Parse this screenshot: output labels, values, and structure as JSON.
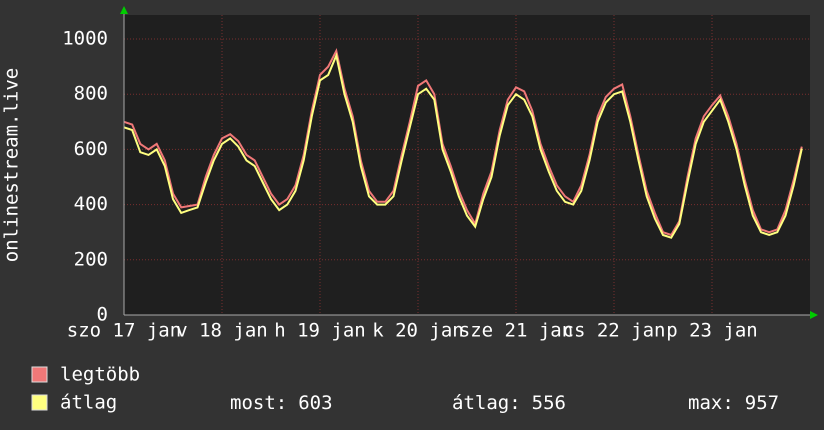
{
  "chart_data": {
    "type": "line",
    "ylabel": "onlinestream.live",
    "x": [
      0,
      2,
      4,
      6,
      8,
      10,
      12,
      14,
      16,
      18,
      20,
      22,
      24,
      26,
      28,
      30,
      32,
      34,
      36,
      38,
      40,
      42,
      44,
      46,
      48,
      50,
      52,
      54,
      56,
      58,
      60,
      62,
      64,
      66,
      68,
      70,
      72,
      74,
      76,
      78,
      80,
      82,
      84,
      86,
      88,
      90,
      92,
      94,
      96,
      98,
      100,
      102,
      104,
      106,
      108,
      110,
      112,
      114,
      116,
      118,
      120,
      122,
      124,
      126,
      128,
      130,
      132,
      134,
      136,
      138,
      140,
      142,
      144,
      146,
      148,
      150,
      152,
      154,
      156,
      158,
      160,
      162,
      164,
      166
    ],
    "xlim": [
      0,
      168
    ],
    "xticks": [
      {
        "value": 0,
        "label": "szo 17 jan"
      },
      {
        "value": 24,
        "label": "v 18 jan"
      },
      {
        "value": 48,
        "label": "h 19 jan"
      },
      {
        "value": 72,
        "label": "k 20 jan"
      },
      {
        "value": 96,
        "label": "sze 21 jan"
      },
      {
        "value": 120,
        "label": "cs 22 jan"
      },
      {
        "value": 144,
        "label": "p 23 jan"
      }
    ],
    "ylim": [
      0,
      1087
    ],
    "yticks": [
      0,
      200,
      400,
      600,
      800,
      1000
    ],
    "grid": true,
    "series": [
      {
        "name": "legtöbb",
        "color": "#f07878",
        "values": [
          700,
          690,
          620,
          600,
          620,
          560,
          440,
          390,
          395,
          400,
          500,
          580,
          640,
          655,
          630,
          580,
          560,
          500,
          440,
          400,
          420,
          470,
          580,
          740,
          870,
          900,
          957,
          820,
          720,
          560,
          450,
          410,
          410,
          450,
          580,
          700,
          830,
          850,
          800,
          620,
          540,
          450,
          380,
          330,
          440,
          520,
          670,
          780,
          825,
          810,
          740,
          620,
          540,
          470,
          430,
          410,
          470,
          580,
          720,
          790,
          820,
          835,
          720,
          580,
          450,
          370,
          300,
          290,
          340,
          500,
          640,
          720,
          760,
          795,
          720,
          620,
          490,
          380,
          310,
          300,
          310,
          380,
          490,
          610
        ]
      },
      {
        "name": "átlag",
        "color": "#ffff80",
        "values": [
          680,
          670,
          590,
          580,
          600,
          540,
          420,
          370,
          380,
          390,
          480,
          560,
          620,
          640,
          610,
          560,
          540,
          480,
          420,
          380,
          400,
          450,
          560,
          720,
          850,
          870,
          940,
          800,
          700,
          540,
          430,
          400,
          400,
          430,
          560,
          680,
          800,
          820,
          780,
          600,
          520,
          430,
          360,
          320,
          420,
          500,
          650,
          760,
          800,
          780,
          720,
          600,
          520,
          450,
          410,
          400,
          450,
          560,
          700,
          770,
          800,
          810,
          700,
          560,
          430,
          350,
          290,
          280,
          330,
          480,
          620,
          700,
          740,
          780,
          700,
          600,
          470,
          360,
          300,
          290,
          300,
          360,
          470,
          603
        ]
      }
    ],
    "stats": [
      {
        "label": "most:",
        "value": 603
      },
      {
        "label": "átlag:",
        "value": 556
      },
      {
        "label": "max:",
        "value": 957
      }
    ]
  }
}
